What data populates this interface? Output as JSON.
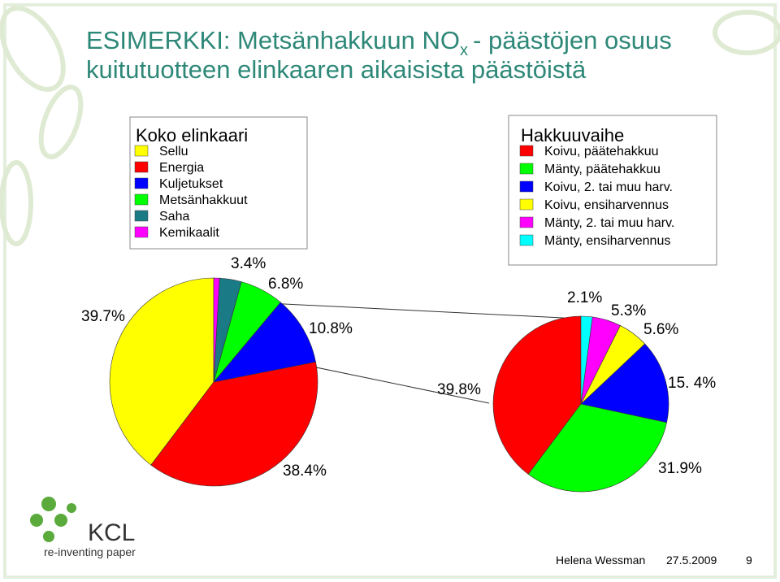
{
  "title": {
    "prefix": "ESIMERKKI: Metsänhakkuun NO",
    "subscript": "x",
    "suffix": "- päästöjen osuus",
    "line2": "kuitutuotteen elinkaaren aikaisista päästöistä"
  },
  "chart_data": [
    {
      "type": "pie",
      "title": "Koko elinkaari",
      "categories": [
        "Sellu",
        "Energia",
        "Kuljetukset",
        "Metsänhakkuut",
        "Saha",
        "Kemikaalit"
      ],
      "values": [
        39.7,
        38.4,
        10.8,
        6.8,
        3.4,
        0.9
      ],
      "value_labels": [
        "39.7%",
        "38.4%",
        "10.8%",
        "6.8%",
        "3.4%",
        null
      ],
      "colors": [
        "#ffff00",
        "#ff0000",
        "#0000ff",
        "#00ff00",
        "#1a7a86",
        "#ff00ff"
      ]
    },
    {
      "type": "pie",
      "title": "Hakkuuvaihe",
      "categories": [
        "Koivu, päätehakkuu",
        "Mänty, päätehakkuu",
        "Koivu, 2. tai muu harv.",
        "Koivu, ensiharvennus",
        "Mänty, 2. tai muu harv.",
        "Mänty, ensiharvennus"
      ],
      "values": [
        39.8,
        31.9,
        15.4,
        5.6,
        5.3,
        2.1
      ],
      "value_labels": [
        "39.8%",
        "31.9%",
        "15. 4%",
        "5.6%",
        "5.3%",
        "2.1%"
      ],
      "colors": [
        "#ff0000",
        "#00ff00",
        "#0000ff",
        "#ffff00",
        "#ff00ff",
        "#00ffff"
      ]
    }
  ],
  "logo": {
    "name": "KCL",
    "tagline": "re-inventing paper"
  },
  "footer": {
    "author": "Helena Wessman",
    "date": "27.5.2009",
    "page": "9"
  }
}
